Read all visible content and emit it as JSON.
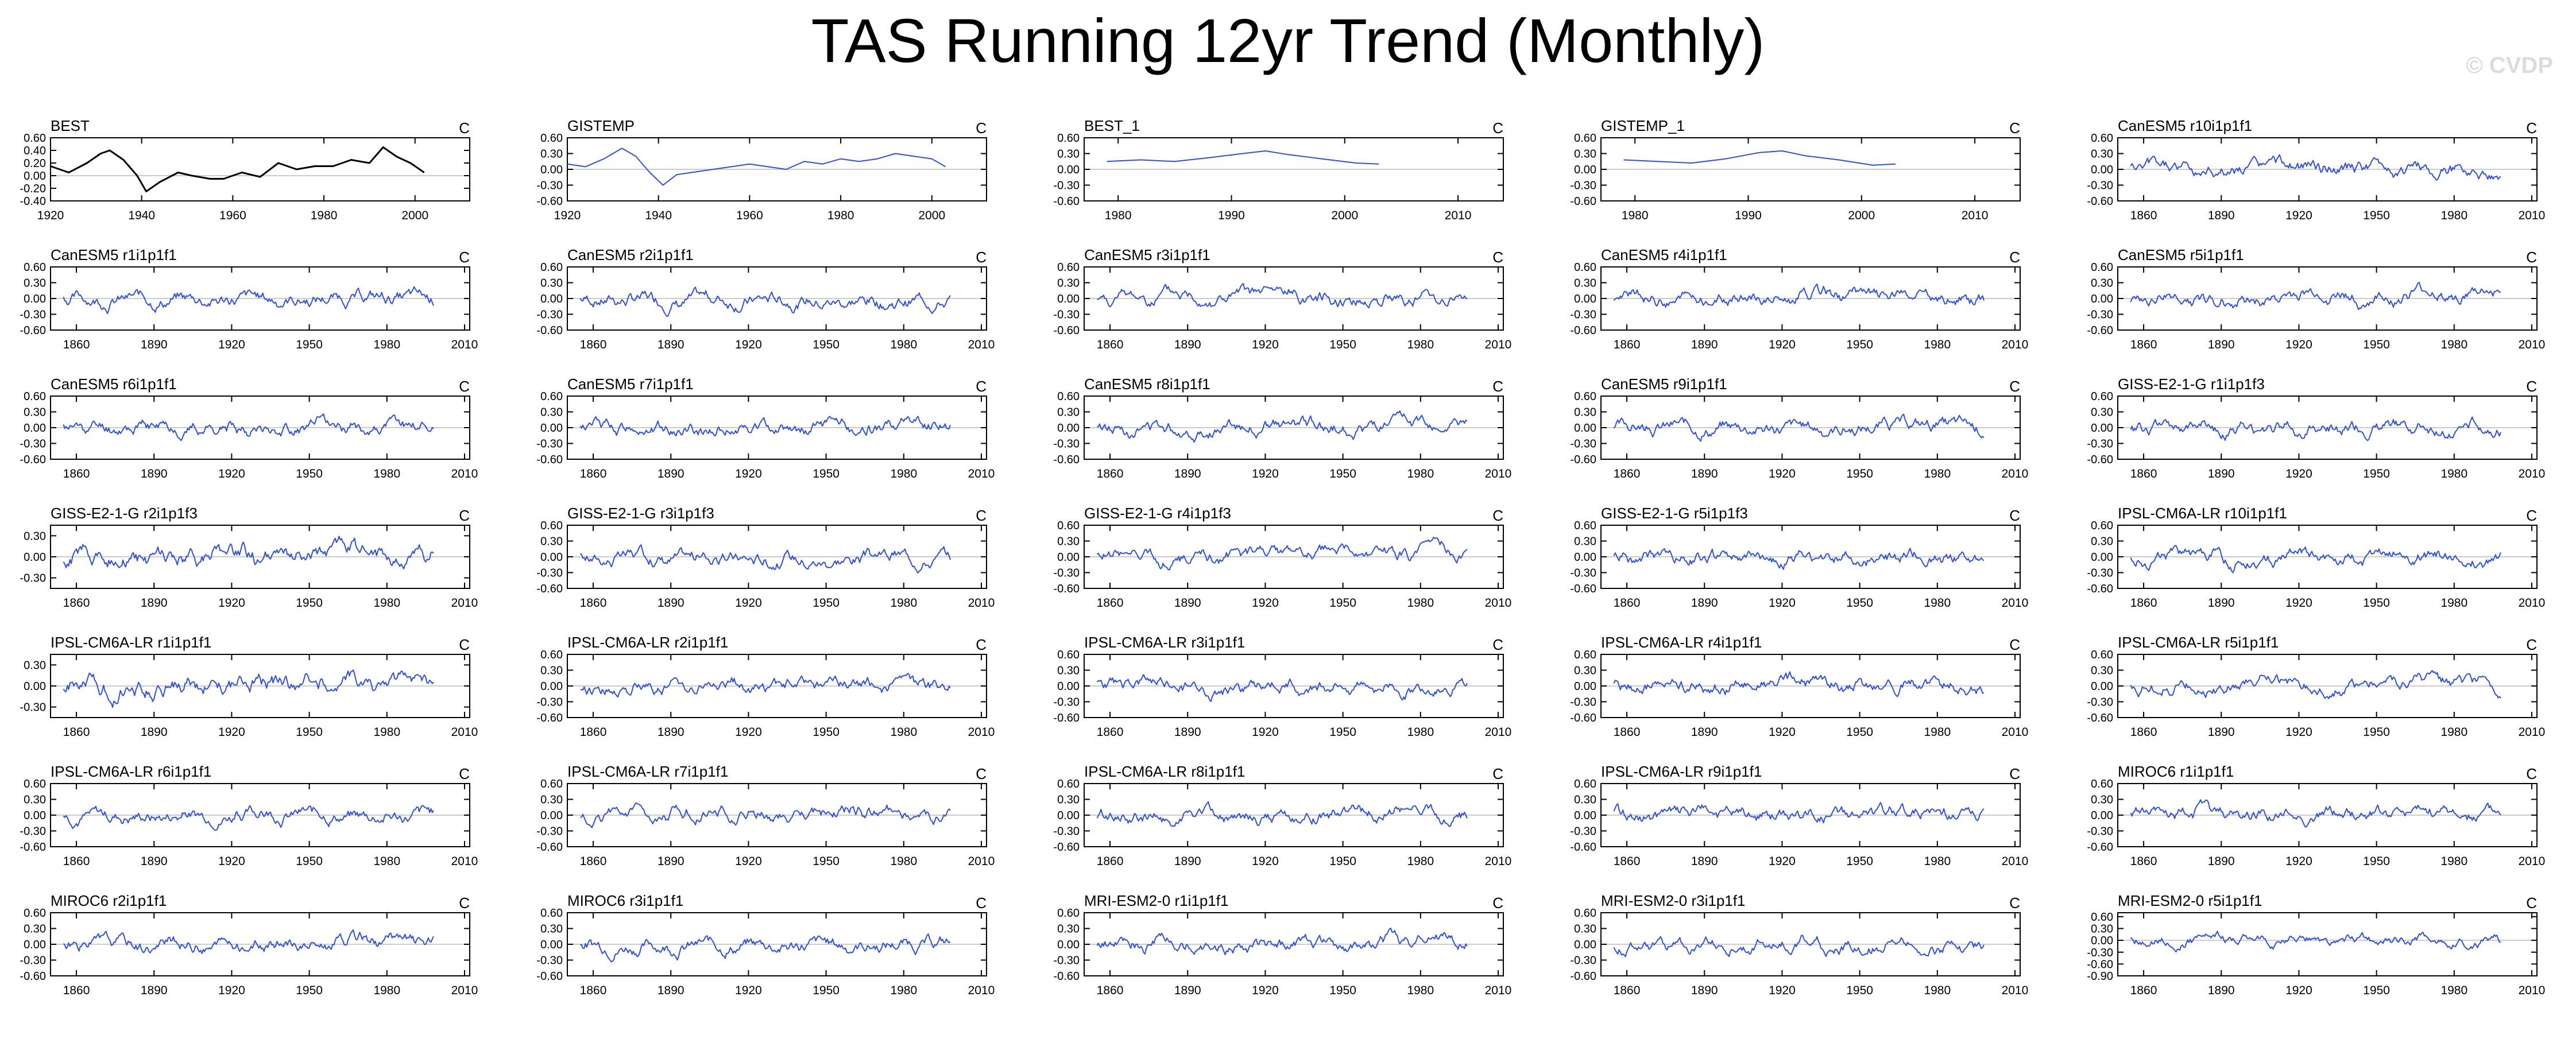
{
  "title": "TAS Running 12yr Trend (Monthly)",
  "watermark": "© CVDP",
  "colors": {
    "obs": "#000000",
    "model": "#3050d8",
    "zero_line": "#cccccc",
    "axis": "#000000"
  },
  "chart_data": [
    {
      "type": "line",
      "name": "BEST",
      "units": "C",
      "xlim": [
        1920,
        2012
      ],
      "xticks": [
        1920,
        1940,
        1960,
        1980,
        2000
      ],
      "yticks": [
        -0.4,
        -0.2,
        0.0,
        0.2,
        0.4,
        0.6
      ],
      "ylim": [
        -0.4,
        0.6
      ],
      "series": [
        {
          "x": [
            1920,
            1924,
            1928,
            1931,
            1933,
            1936,
            1939,
            1941,
            1944,
            1948,
            1951,
            1955,
            1958,
            1962,
            1966,
            1970,
            1974,
            1978,
            1982,
            1986,
            1990,
            1993,
            1996,
            1999,
            2002
          ],
          "y": [
            0.15,
            0.05,
            0.2,
            0.35,
            0.4,
            0.25,
            0.0,
            -0.25,
            -0.1,
            0.05,
            0.0,
            -0.05,
            -0.05,
            0.05,
            -0.02,
            0.2,
            0.1,
            0.15,
            0.15,
            0.25,
            0.2,
            0.45,
            0.3,
            0.2,
            0.05
          ]
        }
      ]
    },
    {
      "type": "line",
      "name": "GISTEMP",
      "units": "C",
      "xlim": [
        1920,
        2012
      ],
      "xticks": [
        1920,
        1940,
        1960,
        1980,
        2000
      ],
      "yticks": [
        -0.6,
        -0.3,
        0.0,
        0.3,
        0.6
      ],
      "ylim": [
        -0.6,
        0.6
      ],
      "series": [
        {
          "x": [
            1920,
            1924,
            1928,
            1932,
            1935,
            1938,
            1941,
            1944,
            1948,
            1952,
            1956,
            1960,
            1964,
            1968,
            1972,
            1976,
            1980,
            1984,
            1988,
            1992,
            1996,
            2000,
            2003
          ],
          "y": [
            0.1,
            0.05,
            0.2,
            0.4,
            0.25,
            -0.05,
            -0.3,
            -0.1,
            -0.05,
            0.0,
            0.05,
            0.1,
            0.05,
            0.0,
            0.15,
            0.1,
            0.2,
            0.15,
            0.2,
            0.3,
            0.25,
            0.2,
            0.05
          ]
        }
      ]
    },
    {
      "type": "line",
      "name": "BEST_1",
      "units": "C",
      "xlim": [
        1977,
        2014
      ],
      "xticks": [
        1980,
        1990,
        2000,
        2010
      ],
      "yticks": [
        -0.6,
        -0.3,
        0.0,
        0.3,
        0.6
      ],
      "ylim": [
        -0.6,
        0.6
      ],
      "series": [
        {
          "x": [
            1979,
            1982,
            1985,
            1988,
            1991,
            1993,
            1995,
            1998,
            2001,
            2003
          ],
          "y": [
            0.15,
            0.18,
            0.15,
            0.22,
            0.3,
            0.35,
            0.28,
            0.2,
            0.12,
            0.1
          ]
        }
      ]
    },
    {
      "type": "line",
      "name": "GISTEMP_1",
      "units": "C",
      "xlim": [
        1977,
        2014
      ],
      "xticks": [
        1980,
        1990,
        2000,
        2010
      ],
      "yticks": [
        -0.6,
        -0.3,
        0.0,
        0.3,
        0.6
      ],
      "ylim": [
        -0.6,
        0.6
      ],
      "series": [
        {
          "x": [
            1979,
            1982,
            1985,
            1988,
            1991,
            1993,
            1995,
            1998,
            2001,
            2003
          ],
          "y": [
            0.18,
            0.15,
            0.12,
            0.2,
            0.32,
            0.35,
            0.26,
            0.18,
            0.08,
            0.1
          ]
        }
      ]
    },
    {
      "type": "line",
      "name": "CanESM5 r10i1p1f1",
      "units": "C",
      "xlim": [
        1850,
        2012
      ],
      "xticks": [
        1860,
        1890,
        1920,
        1950,
        1980,
        2010
      ],
      "yticks": [
        -0.6,
        -0.3,
        0.0,
        0.3,
        0.6
      ],
      "ylim": [
        -0.6,
        0.6
      ],
      "seed": 5
    },
    {
      "type": "line",
      "name": "CanESM5 r1i1p1f1",
      "units": "C",
      "xlim": [
        1850,
        2012
      ],
      "xticks": [
        1860,
        1890,
        1920,
        1950,
        1980,
        2010
      ],
      "yticks": [
        -0.6,
        -0.3,
        0.0,
        0.3,
        0.6
      ],
      "ylim": [
        -0.6,
        0.6
      ],
      "seed": 6
    },
    {
      "type": "line",
      "name": "CanESM5 r2i1p1f1",
      "units": "C",
      "xlim": [
        1850,
        2012
      ],
      "xticks": [
        1860,
        1890,
        1920,
        1950,
        1980,
        2010
      ],
      "yticks": [
        -0.6,
        -0.3,
        0.0,
        0.3,
        0.6
      ],
      "ylim": [
        -0.6,
        0.6
      ],
      "seed": 7
    },
    {
      "type": "line",
      "name": "CanESM5 r3i1p1f1",
      "units": "C",
      "xlim": [
        1850,
        2012
      ],
      "xticks": [
        1860,
        1890,
        1920,
        1950,
        1980,
        2010
      ],
      "yticks": [
        -0.6,
        -0.3,
        0.0,
        0.3,
        0.6
      ],
      "ylim": [
        -0.6,
        0.6
      ],
      "seed": 8
    },
    {
      "type": "line",
      "name": "CanESM5 r4i1p1f1",
      "units": "C",
      "xlim": [
        1850,
        2012
      ],
      "xticks": [
        1860,
        1890,
        1920,
        1950,
        1980,
        2010
      ],
      "yticks": [
        -0.6,
        -0.3,
        0.0,
        0.3,
        0.6
      ],
      "ylim": [
        -0.6,
        0.6
      ],
      "seed": 9
    },
    {
      "type": "line",
      "name": "CanESM5 r5i1p1f1",
      "units": "C",
      "xlim": [
        1850,
        2012
      ],
      "xticks": [
        1860,
        1890,
        1920,
        1950,
        1980,
        2010
      ],
      "yticks": [
        -0.6,
        -0.3,
        0.0,
        0.3,
        0.6
      ],
      "ylim": [
        -0.6,
        0.6
      ],
      "seed": 10
    },
    {
      "type": "line",
      "name": "CanESM5 r6i1p1f1",
      "units": "C",
      "xlim": [
        1850,
        2012
      ],
      "xticks": [
        1860,
        1890,
        1920,
        1950,
        1980,
        2010
      ],
      "yticks": [
        -0.6,
        -0.3,
        0.0,
        0.3,
        0.6
      ],
      "ylim": [
        -0.6,
        0.6
      ],
      "seed": 11
    },
    {
      "type": "line",
      "name": "CanESM5 r7i1p1f1",
      "units": "C",
      "xlim": [
        1850,
        2012
      ],
      "xticks": [
        1860,
        1890,
        1920,
        1950,
        1980,
        2010
      ],
      "yticks": [
        -0.6,
        -0.3,
        0.0,
        0.3,
        0.6
      ],
      "ylim": [
        -0.6,
        0.6
      ],
      "seed": 12
    },
    {
      "type": "line",
      "name": "CanESM5 r8i1p1f1",
      "units": "C",
      "xlim": [
        1850,
        2012
      ],
      "xticks": [
        1860,
        1890,
        1920,
        1950,
        1980,
        2010
      ],
      "yticks": [
        -0.6,
        -0.3,
        0.0,
        0.3,
        0.6
      ],
      "ylim": [
        -0.6,
        0.6
      ],
      "seed": 13
    },
    {
      "type": "line",
      "name": "CanESM5 r9i1p1f1",
      "units": "C",
      "xlim": [
        1850,
        2012
      ],
      "xticks": [
        1860,
        1890,
        1920,
        1950,
        1980,
        2010
      ],
      "yticks": [
        -0.6,
        -0.3,
        0.0,
        0.3,
        0.6
      ],
      "ylim": [
        -0.6,
        0.6
      ],
      "seed": 14
    },
    {
      "type": "line",
      "name": "GISS-E2-1-G r1i1p1f3",
      "units": "C",
      "xlim": [
        1850,
        2012
      ],
      "xticks": [
        1860,
        1890,
        1920,
        1950,
        1980,
        2010
      ],
      "yticks": [
        -0.6,
        -0.3,
        0.0,
        0.3,
        0.6
      ],
      "ylim": [
        -0.6,
        0.6
      ],
      "seed": 15
    },
    {
      "type": "line",
      "name": "GISS-E2-1-G r2i1p1f3",
      "units": "C",
      "xlim": [
        1850,
        2012
      ],
      "xticks": [
        1860,
        1890,
        1920,
        1950,
        1980,
        2010
      ],
      "yticks": [
        -0.3,
        0.0,
        0.3
      ],
      "ylim": [
        -0.45,
        0.45
      ],
      "seed": 16
    },
    {
      "type": "line",
      "name": "GISS-E2-1-G r3i1p1f3",
      "units": "C",
      "xlim": [
        1850,
        2012
      ],
      "xticks": [
        1860,
        1890,
        1920,
        1950,
        1980,
        2010
      ],
      "yticks": [
        -0.6,
        -0.3,
        0.0,
        0.3,
        0.6
      ],
      "ylim": [
        -0.6,
        0.6
      ],
      "seed": 17
    },
    {
      "type": "line",
      "name": "GISS-E2-1-G r4i1p1f3",
      "units": "C",
      "xlim": [
        1850,
        2012
      ],
      "xticks": [
        1860,
        1890,
        1920,
        1950,
        1980,
        2010
      ],
      "yticks": [
        -0.6,
        -0.3,
        0.0,
        0.3,
        0.6
      ],
      "ylim": [
        -0.6,
        0.6
      ],
      "seed": 18
    },
    {
      "type": "line",
      "name": "GISS-E2-1-G r5i1p1f3",
      "units": "C",
      "xlim": [
        1850,
        2012
      ],
      "xticks": [
        1860,
        1890,
        1920,
        1950,
        1980,
        2010
      ],
      "yticks": [
        -0.6,
        -0.3,
        0.0,
        0.3,
        0.6
      ],
      "ylim": [
        -0.6,
        0.6
      ],
      "seed": 19
    },
    {
      "type": "line",
      "name": "IPSL-CM6A-LR r10i1p1f1",
      "units": "C",
      "xlim": [
        1850,
        2012
      ],
      "xticks": [
        1860,
        1890,
        1920,
        1950,
        1980,
        2010
      ],
      "yticks": [
        -0.6,
        -0.3,
        0.0,
        0.3,
        0.6
      ],
      "ylim": [
        -0.6,
        0.6
      ],
      "seed": 20
    },
    {
      "type": "line",
      "name": "IPSL-CM6A-LR r1i1p1f1",
      "units": "C",
      "xlim": [
        1850,
        2012
      ],
      "xticks": [
        1860,
        1890,
        1920,
        1950,
        1980,
        2010
      ],
      "yticks": [
        -0.3,
        0.0,
        0.3
      ],
      "ylim": [
        -0.45,
        0.45
      ],
      "seed": 21
    },
    {
      "type": "line",
      "name": "IPSL-CM6A-LR r2i1p1f1",
      "units": "C",
      "xlim": [
        1850,
        2012
      ],
      "xticks": [
        1860,
        1890,
        1920,
        1950,
        1980,
        2010
      ],
      "yticks": [
        -0.6,
        -0.3,
        0.0,
        0.3,
        0.6
      ],
      "ylim": [
        -0.6,
        0.6
      ],
      "seed": 22
    },
    {
      "type": "line",
      "name": "IPSL-CM6A-LR r3i1p1f1",
      "units": "C",
      "xlim": [
        1850,
        2012
      ],
      "xticks": [
        1860,
        1890,
        1920,
        1950,
        1980,
        2010
      ],
      "yticks": [
        -0.6,
        -0.3,
        0.0,
        0.3,
        0.6
      ],
      "ylim": [
        -0.6,
        0.6
      ],
      "seed": 23
    },
    {
      "type": "line",
      "name": "IPSL-CM6A-LR r4i1p1f1",
      "units": "C",
      "xlim": [
        1850,
        2012
      ],
      "xticks": [
        1860,
        1890,
        1920,
        1950,
        1980,
        2010
      ],
      "yticks": [
        -0.6,
        -0.3,
        0.0,
        0.3,
        0.6
      ],
      "ylim": [
        -0.6,
        0.6
      ],
      "seed": 24
    },
    {
      "type": "line",
      "name": "IPSL-CM6A-LR r5i1p1f1",
      "units": "C",
      "xlim": [
        1850,
        2012
      ],
      "xticks": [
        1860,
        1890,
        1920,
        1950,
        1980,
        2010
      ],
      "yticks": [
        -0.6,
        -0.3,
        0.0,
        0.3,
        0.6
      ],
      "ylim": [
        -0.6,
        0.6
      ],
      "seed": 25
    },
    {
      "type": "line",
      "name": "IPSL-CM6A-LR r6i1p1f1",
      "units": "C",
      "xlim": [
        1850,
        2012
      ],
      "xticks": [
        1860,
        1890,
        1920,
        1950,
        1980,
        2010
      ],
      "yticks": [
        -0.6,
        -0.3,
        0.0,
        0.3,
        0.6
      ],
      "ylim": [
        -0.6,
        0.6
      ],
      "seed": 26
    },
    {
      "type": "line",
      "name": "IPSL-CM6A-LR r7i1p1f1",
      "units": "C",
      "xlim": [
        1850,
        2012
      ],
      "xticks": [
        1860,
        1890,
        1920,
        1950,
        1980,
        2010
      ],
      "yticks": [
        -0.6,
        -0.3,
        0.0,
        0.3,
        0.6
      ],
      "ylim": [
        -0.6,
        0.6
      ],
      "seed": 27
    },
    {
      "type": "line",
      "name": "IPSL-CM6A-LR r8i1p1f1",
      "units": "C",
      "xlim": [
        1850,
        2012
      ],
      "xticks": [
        1860,
        1890,
        1920,
        1950,
        1980,
        2010
      ],
      "yticks": [
        -0.6,
        -0.3,
        0.0,
        0.3,
        0.6
      ],
      "ylim": [
        -0.6,
        0.6
      ],
      "seed": 28
    },
    {
      "type": "line",
      "name": "IPSL-CM6A-LR r9i1p1f1",
      "units": "C",
      "xlim": [
        1850,
        2012
      ],
      "xticks": [
        1860,
        1890,
        1920,
        1950,
        1980,
        2010
      ],
      "yticks": [
        -0.6,
        -0.3,
        0.0,
        0.3,
        0.6
      ],
      "ylim": [
        -0.6,
        0.6
      ],
      "seed": 29
    },
    {
      "type": "line",
      "name": "MIROC6 r1i1p1f1",
      "units": "C",
      "xlim": [
        1850,
        2012
      ],
      "xticks": [
        1860,
        1890,
        1920,
        1950,
        1980,
        2010
      ],
      "yticks": [
        -0.6,
        -0.3,
        0.0,
        0.3,
        0.6
      ],
      "ylim": [
        -0.6,
        0.6
      ],
      "seed": 30
    },
    {
      "type": "line",
      "name": "MIROC6 r2i1p1f1",
      "units": "C",
      "xlim": [
        1850,
        2012
      ],
      "xticks": [
        1860,
        1890,
        1920,
        1950,
        1980,
        2010
      ],
      "yticks": [
        -0.6,
        -0.3,
        0.0,
        0.3,
        0.6
      ],
      "ylim": [
        -0.6,
        0.6
      ],
      "seed": 31
    },
    {
      "type": "line",
      "name": "MIROC6 r3i1p1f1",
      "units": "C",
      "xlim": [
        1850,
        2012
      ],
      "xticks": [
        1860,
        1890,
        1920,
        1950,
        1980,
        2010
      ],
      "yticks": [
        -0.6,
        -0.3,
        0.0,
        0.3,
        0.6
      ],
      "ylim": [
        -0.6,
        0.6
      ],
      "seed": 32
    },
    {
      "type": "line",
      "name": "MRI-ESM2-0 r1i1p1f1",
      "units": "C",
      "xlim": [
        1850,
        2012
      ],
      "xticks": [
        1860,
        1890,
        1920,
        1950,
        1980,
        2010
      ],
      "yticks": [
        -0.6,
        -0.3,
        0.0,
        0.3,
        0.6
      ],
      "ylim": [
        -0.6,
        0.6
      ],
      "seed": 33
    },
    {
      "type": "line",
      "name": "MRI-ESM2-0 r3i1p1f1",
      "units": "C",
      "xlim": [
        1850,
        2012
      ],
      "xticks": [
        1860,
        1890,
        1920,
        1950,
        1980,
        2010
      ],
      "yticks": [
        -0.6,
        -0.3,
        0.0,
        0.3,
        0.6
      ],
      "ylim": [
        -0.6,
        0.6
      ],
      "seed": 34
    },
    {
      "type": "line",
      "name": "MRI-ESM2-0 r5i1p1f1",
      "units": "C",
      "xlim": [
        1850,
        2012
      ],
      "xticks": [
        1860,
        1890,
        1920,
        1950,
        1980,
        2010
      ],
      "yticks": [
        -0.9,
        -0.6,
        -0.3,
        0.0,
        0.3,
        0.6
      ],
      "ylim": [
        -0.9,
        0.7
      ],
      "seed": 35
    }
  ]
}
